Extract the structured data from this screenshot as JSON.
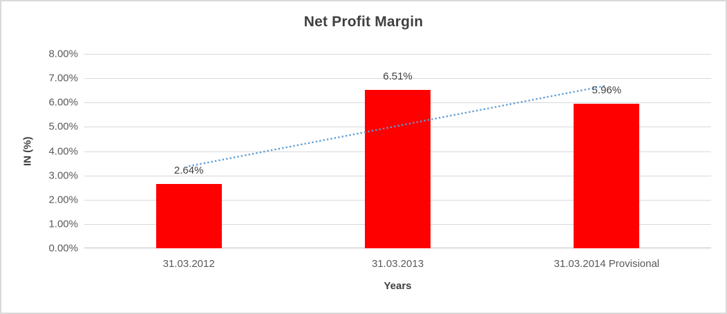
{
  "chart": {
    "title": "Net Profit Margin",
    "y_axis_title": "IN (%)",
    "x_axis_title": "Years"
  },
  "chart_data": {
    "type": "bar",
    "title": "Net Profit Margin",
    "xlabel": "Years",
    "ylabel": "IN (%)",
    "categories": [
      "31.03.2012",
      "31.03.2013",
      "31.03.2014 Provisional"
    ],
    "values": [
      2.64,
      6.51,
      5.96
    ],
    "data_labels": [
      "2.64%",
      "6.51%",
      "5.96%"
    ],
    "ylim": [
      0,
      8
    ],
    "ytick_step": 1,
    "ytick_labels": [
      "0.00%",
      "1.00%",
      "2.00%",
      "3.00%",
      "4.00%",
      "5.00%",
      "6.00%",
      "7.00%",
      "8.00%"
    ],
    "grid": true,
    "legend": "none",
    "bar_color": "#ff0000",
    "gridline_color": "#d9d9d9",
    "trendline": {
      "type": "linear",
      "style": "dotted",
      "color": "#5b9bd5",
      "start_value": 3.38,
      "end_value": 6.7
    }
  }
}
